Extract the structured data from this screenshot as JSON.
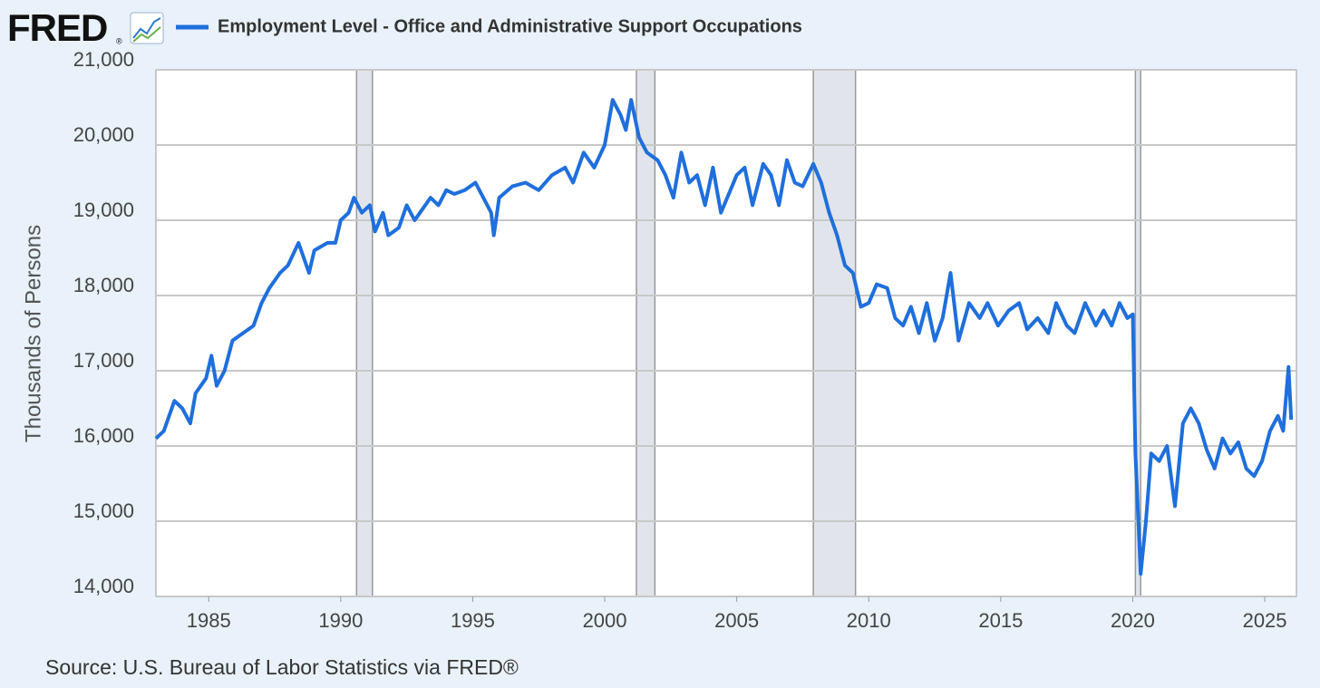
{
  "logo": "FRED",
  "logo_mark": "®",
  "chart_data": {
    "type": "line",
    "title": "Employment Level - Office and Administrative Support Occupations",
    "y_label": "Thousands of Persons",
    "source": "Source: U.S. Bureau of Labor Statistics via FRED®",
    "x": [
      1983.0,
      1983.3,
      1983.7,
      1984.0,
      1984.3,
      1984.5,
      1984.9,
      1985.1,
      1985.3,
      1985.6,
      1985.9,
      1986.3,
      1986.7,
      1987.0,
      1987.3,
      1987.7,
      1988.0,
      1988.4,
      1988.6,
      1988.8,
      1989.0,
      1989.5,
      1989.8,
      1990.0,
      1990.3,
      1990.5,
      1990.8,
      1991.1,
      1991.3,
      1991.6,
      1991.8,
      1992.2,
      1992.5,
      1992.8,
      1993.0,
      1993.4,
      1993.7,
      1994.0,
      1994.3,
      1994.7,
      1995.1,
      1995.4,
      1995.7,
      1995.8,
      1996.0,
      1996.5,
      1997.0,
      1997.5,
      1998.0,
      1998.5,
      1998.8,
      1999.2,
      1999.6,
      2000.0,
      2000.3,
      2000.6,
      2000.8,
      2001.0,
      2001.3,
      2001.6,
      2002.0,
      2002.3,
      2002.6,
      2002.9,
      2003.2,
      2003.5,
      2003.8,
      2004.1,
      2004.4,
      2004.7,
      2005.0,
      2005.3,
      2005.6,
      2006.0,
      2006.3,
      2006.6,
      2006.9,
      2007.2,
      2007.5,
      2007.9,
      2008.2,
      2008.5,
      2008.8,
      2009.1,
      2009.4,
      2009.7,
      2010.0,
      2010.3,
      2010.7,
      2011.0,
      2011.3,
      2011.6,
      2011.9,
      2012.2,
      2012.5,
      2012.8,
      2013.1,
      2013.4,
      2013.8,
      2014.2,
      2014.5,
      2014.9,
      2015.3,
      2015.7,
      2016.0,
      2016.4,
      2016.8,
      2017.1,
      2017.5,
      2017.8,
      2018.2,
      2018.6,
      2018.9,
      2019.2,
      2019.5,
      2019.8,
      2020.0,
      2020.1,
      2020.3,
      2020.5,
      2020.7,
      2021.0,
      2021.3,
      2021.6,
      2021.9,
      2022.2,
      2022.5,
      2022.8,
      2023.1,
      2023.4,
      2023.7,
      2024.0,
      2024.3,
      2024.6,
      2024.9,
      2025.2,
      2025.5,
      2025.7,
      2025.9,
      2026.0
    ],
    "series": [
      {
        "name": "Employment Level - Office and Administrative Support Occupations",
        "color": "#1f6fdc",
        "values": [
          16100,
          16200,
          16600,
          16500,
          16300,
          16700,
          16900,
          17200,
          16800,
          17000,
          17400,
          17500,
          17600,
          17900,
          18100,
          18300,
          18400,
          18700,
          18500,
          18300,
          18600,
          18700,
          18700,
          19000,
          19100,
          19300,
          19100,
          19200,
          18850,
          19100,
          18800,
          18900,
          19200,
          19000,
          19100,
          19300,
          19200,
          19400,
          19350,
          19400,
          19500,
          19300,
          19100,
          18800,
          19300,
          19450,
          19500,
          19400,
          19600,
          19700,
          19500,
          19900,
          19700,
          20000,
          20600,
          20400,
          20200,
          20600,
          20100,
          19900,
          19800,
          19600,
          19300,
          19900,
          19500,
          19600,
          19200,
          19700,
          19100,
          19350,
          19600,
          19700,
          19200,
          19750,
          19600,
          19200,
          19800,
          19500,
          19450,
          19750,
          19500,
          19100,
          18800,
          18400,
          18300,
          17850,
          17900,
          18150,
          18100,
          17700,
          17600,
          17850,
          17500,
          17900,
          17400,
          17700,
          18300,
          17400,
          17900,
          17700,
          17900,
          17600,
          17800,
          17900,
          17550,
          17700,
          17500,
          17900,
          17600,
          17500,
          17900,
          17600,
          17800,
          17600,
          17900,
          17700,
          17750,
          15900,
          14300,
          15000,
          15900,
          15800,
          16000,
          15200,
          16300,
          16500,
          16300,
          15950,
          15700,
          16100,
          15900,
          16050,
          15700,
          15600,
          15800,
          16200,
          16400,
          16200,
          17050,
          16350
        ]
      }
    ],
    "recessions": [
      [
        1990.6,
        1991.2
      ],
      [
        2001.2,
        2001.9
      ],
      [
        2007.9,
        2009.5
      ],
      [
        2020.1,
        2020.3
      ]
    ],
    "xlim": [
      1983.0,
      2026.2
    ],
    "xticks": [
      1985,
      1990,
      1995,
      2000,
      2005,
      2010,
      2015,
      2020,
      2025
    ],
    "ylim": [
      14000,
      21000
    ],
    "yticks": [
      {
        "value": 14000,
        "label": "14,000"
      },
      {
        "value": 15000,
        "label": "15,000"
      },
      {
        "value": 16000,
        "label": "16,000"
      },
      {
        "value": 17000,
        "label": "17,000"
      },
      {
        "value": 18000,
        "label": "18,000"
      },
      {
        "value": 19000,
        "label": "19,000"
      },
      {
        "value": 20000,
        "label": "20,000"
      },
      {
        "value": 21000,
        "label": "21,000"
      }
    ],
    "grid": true
  }
}
